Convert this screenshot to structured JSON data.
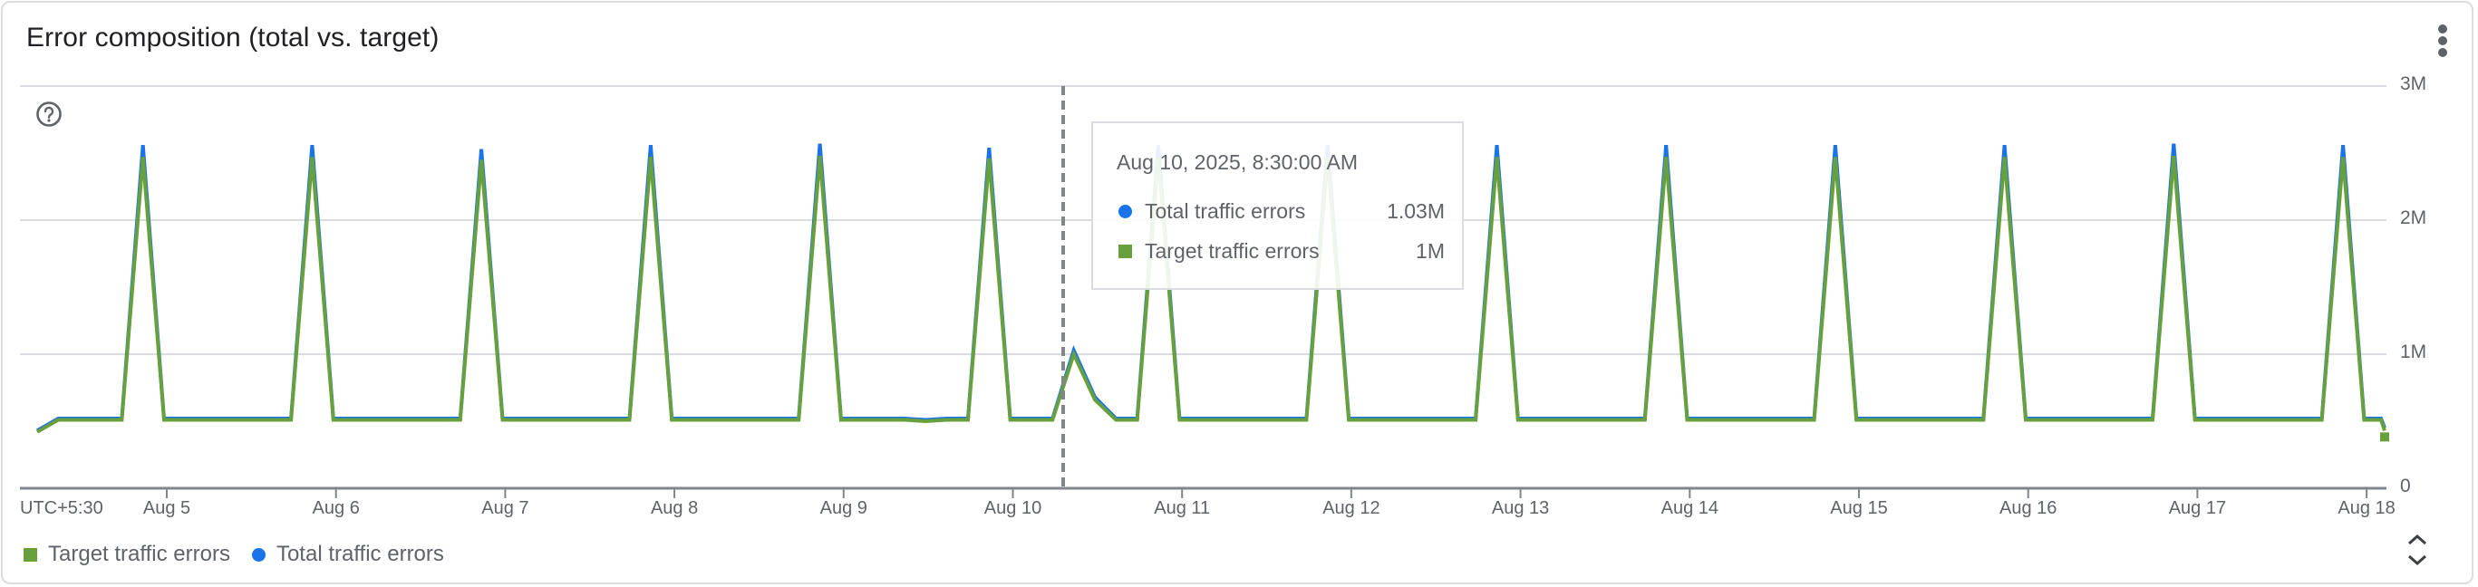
{
  "card": {
    "title": "Error composition (total vs. target)",
    "more_icon": "more-vert-icon",
    "help_icon": "help-circle-icon",
    "expand_icon": "unfold-more-icon"
  },
  "colors": {
    "total": "#1a73e8",
    "target": "#67a03c",
    "grid": "#dadce0",
    "axis": "#80868b",
    "crosshair": "#80868b",
    "text_secondary": "#5f6368"
  },
  "axes": {
    "y_ticks": [
      {
        "label": "3M",
        "value": 3000000
      },
      {
        "label": "2M",
        "value": 2000000
      },
      {
        "label": "1M",
        "value": 1000000
      },
      {
        "label": "0",
        "value": 0
      }
    ],
    "x_timezone": "UTC+5:30",
    "x_ticks": [
      "Aug 5",
      "Aug 6",
      "Aug 7",
      "Aug 8",
      "Aug 9",
      "Aug 10",
      "Aug 11",
      "Aug 12",
      "Aug 13",
      "Aug 14",
      "Aug 15",
      "Aug 16",
      "Aug 17",
      "Aug 18"
    ]
  },
  "legend": [
    {
      "label": "Target traffic errors",
      "shape": "square",
      "series": "target"
    },
    {
      "label": "Total traffic errors",
      "shape": "circle",
      "series": "total"
    }
  ],
  "tooltip": {
    "date": "Aug 10, 2025, 8:30:00 AM",
    "rows": [
      {
        "label": "Total traffic errors",
        "value": "1.03M",
        "shape": "circle",
        "series": "total"
      },
      {
        "label": "Target traffic errors",
        "value": "1M",
        "shape": "square",
        "series": "target"
      }
    ]
  },
  "chart_data": {
    "type": "line",
    "title": "Error composition (total vs. target)",
    "xlabel": "",
    "ylabel": "",
    "ylim": [
      0,
      3000000
    ],
    "grid": true,
    "legend_position": "bottom",
    "x_interval_hours": 3,
    "x_start_index_offset": 0,
    "x_tick_labels": [
      "Aug 5",
      "Aug 6",
      "Aug 7",
      "Aug 8",
      "Aug 9",
      "Aug 10",
      "Aug 11",
      "Aug 12",
      "Aug 13",
      "Aug 14",
      "Aug 15",
      "Aug 16",
      "Aug 17",
      "Aug 18"
    ],
    "timezone": "UTC+5:30",
    "highlight": {
      "x_label": "Aug 10, 2025, 8:30:00 AM",
      "index": 49,
      "total": 1030000,
      "target": 1000000
    },
    "series": [
      {
        "name": "Total traffic errors",
        "key": "total",
        "values_millions": [
          0.43,
          0.52,
          0.52,
          0.52,
          0.52,
          2.56,
          0.52,
          0.52,
          0.52,
          0.52,
          0.52,
          0.52,
          0.52,
          2.56,
          0.52,
          0.52,
          0.52,
          0.52,
          0.52,
          0.52,
          0.52,
          2.53,
          0.52,
          0.52,
          0.52,
          0.52,
          0.52,
          0.52,
          0.52,
          2.56,
          0.52,
          0.52,
          0.52,
          0.52,
          0.52,
          0.52,
          0.52,
          2.57,
          0.52,
          0.52,
          0.52,
          0.52,
          0.51,
          0.52,
          0.52,
          2.54,
          0.52,
          0.52,
          0.52,
          1.03,
          0.68,
          0.52,
          0.52,
          2.56,
          0.52,
          0.52,
          0.52,
          0.52,
          0.52,
          0.52,
          0.52,
          2.56,
          0.52,
          0.52,
          0.52,
          0.52,
          0.52,
          0.52,
          0.52,
          2.56,
          0.52,
          0.52,
          0.52,
          0.52,
          0.52,
          0.52,
          0.52,
          2.56,
          0.52,
          0.52,
          0.52,
          0.52,
          0.52,
          0.52,
          0.52,
          2.56,
          0.52,
          0.52,
          0.52,
          0.52,
          0.52,
          0.52,
          0.52,
          2.56,
          0.52,
          0.52,
          0.52,
          0.52,
          0.52,
          0.52,
          0.52,
          2.57,
          0.52,
          0.52,
          0.52,
          0.52,
          0.52,
          0.52,
          0.52,
          2.56,
          0.52,
          0.45
        ]
      },
      {
        "name": "Target traffic errors",
        "key": "target",
        "values_millions": [
          0.42,
          0.51,
          0.51,
          0.51,
          0.51,
          2.47,
          0.51,
          0.51,
          0.51,
          0.51,
          0.51,
          0.51,
          0.51,
          2.47,
          0.51,
          0.51,
          0.51,
          0.51,
          0.51,
          0.51,
          0.51,
          2.45,
          0.51,
          0.51,
          0.51,
          0.51,
          0.51,
          0.51,
          0.51,
          2.47,
          0.51,
          0.51,
          0.51,
          0.51,
          0.51,
          0.51,
          0.51,
          2.48,
          0.51,
          0.51,
          0.51,
          0.51,
          0.5,
          0.51,
          0.51,
          2.46,
          0.51,
          0.51,
          0.51,
          1.0,
          0.66,
          0.51,
          0.51,
          2.47,
          0.51,
          0.51,
          0.51,
          0.51,
          0.51,
          0.51,
          0.51,
          2.47,
          0.51,
          0.51,
          0.51,
          0.51,
          0.51,
          0.51,
          0.51,
          2.47,
          0.51,
          0.51,
          0.51,
          0.51,
          0.51,
          0.51,
          0.51,
          2.47,
          0.51,
          0.51,
          0.51,
          0.51,
          0.51,
          0.51,
          0.51,
          2.47,
          0.51,
          0.51,
          0.51,
          0.51,
          0.51,
          0.51,
          0.51,
          2.47,
          0.51,
          0.51,
          0.51,
          0.51,
          0.51,
          0.51,
          0.51,
          2.48,
          0.51,
          0.51,
          0.51,
          0.51,
          0.51,
          0.51,
          0.51,
          2.47,
          0.51,
          0.43
        ]
      }
    ]
  }
}
